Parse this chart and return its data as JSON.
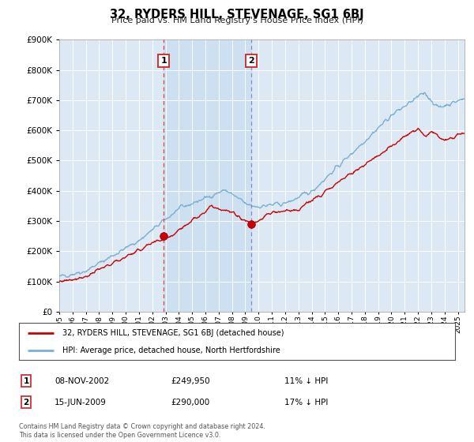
{
  "title": "32, RYDERS HILL, STEVENAGE, SG1 6BJ",
  "subtitle": "Price paid vs. HM Land Registry's House Price Index (HPI)",
  "background_color": "#ffffff",
  "chart_bg_color": "#dce9f5",
  "shade_color": "#c8ddf0",
  "ylim": [
    0,
    900000
  ],
  "yticks": [
    0,
    100000,
    200000,
    300000,
    400000,
    500000,
    600000,
    700000,
    800000,
    900000
  ],
  "ytick_labels": [
    "£0",
    "£100K",
    "£200K",
    "£300K",
    "£400K",
    "£500K",
    "£600K",
    "£700K",
    "£800K",
    "£900K"
  ],
  "xlim_start": 1995.0,
  "xlim_end": 2025.5,
  "xtick_years": [
    1995,
    1996,
    1997,
    1998,
    1999,
    2000,
    2001,
    2002,
    2003,
    2004,
    2005,
    2006,
    2007,
    2008,
    2009,
    2010,
    2011,
    2012,
    2013,
    2014,
    2015,
    2016,
    2017,
    2018,
    2019,
    2020,
    2021,
    2022,
    2023,
    2024,
    2025
  ],
  "sale1_x": 2002.86,
  "sale1_y": 249950,
  "sale1_label": "1",
  "sale1_date": "08-NOV-2002",
  "sale1_price": "£249,950",
  "sale1_hpi": "11% ↓ HPI",
  "sale2_x": 2009.46,
  "sale2_y": 290000,
  "sale2_label": "2",
  "sale2_date": "15-JUN-2009",
  "sale2_price": "£290,000",
  "sale2_hpi": "17% ↓ HPI",
  "line_color_red": "#cc0000",
  "line_color_blue": "#7aafd4",
  "vline_color_red": "#dd4444",
  "vline_color_blue": "#8888cc",
  "legend_label_red": "32, RYDERS HILL, STEVENAGE, SG1 6BJ (detached house)",
  "legend_label_blue": "HPI: Average price, detached house, North Hertfordshire",
  "footer": "Contains HM Land Registry data © Crown copyright and database right 2024.\nThis data is licensed under the Open Government Licence v3.0."
}
